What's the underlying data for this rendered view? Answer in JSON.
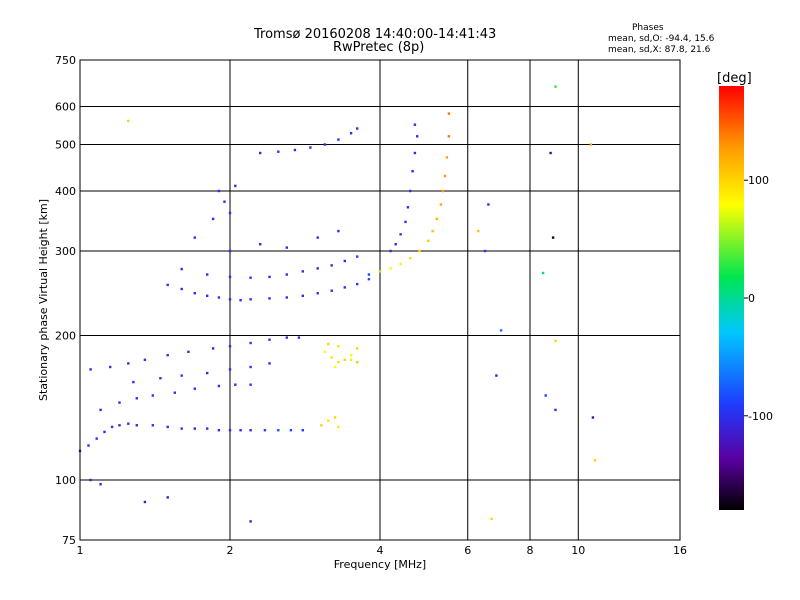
{
  "header": {
    "title": "Tromsø 20160208 14:40:00-14:41:43",
    "subtitle": "RwPretec (8p)"
  },
  "phase_stats": {
    "heading": "Phases",
    "line_o": "mean, sd,O: -94.4, 15.6",
    "line_x": "mean, sd,X:  87.8, 21.6"
  },
  "colorbar": {
    "label": "[deg]",
    "range": [
      -180,
      180
    ],
    "ticks": [
      100,
      0,
      -100
    ],
    "tick_labels": [
      "100",
      "0",
      "-100"
    ]
  },
  "chart_data": {
    "type": "scatter",
    "xlabel": "Frequency [MHz]",
    "ylabel": "Stationary phase Virtual Height [km]",
    "x_scale": "log",
    "y_scale": "log",
    "xlim": [
      1,
      16
    ],
    "ylim": [
      75,
      750
    ],
    "x_ticks": [
      1,
      2,
      4,
      6,
      8,
      10,
      16
    ],
    "x_tick_labels": [
      "1",
      "2",
      "4",
      "6",
      "8",
      "10",
      "16"
    ],
    "y_ticks": [
      75,
      100,
      200,
      300,
      400,
      500,
      600,
      750
    ],
    "y_tick_labels": [
      "75",
      "100",
      "200",
      "300",
      "400",
      "500",
      "600",
      "750"
    ],
    "grid": true,
    "color_by": "phase_deg",
    "series": [
      {
        "points": [
          [
            1.0,
            115,
            -100
          ],
          [
            1.04,
            118,
            -102
          ],
          [
            1.08,
            122,
            -98
          ],
          [
            1.12,
            126,
            -100
          ],
          [
            1.16,
            129,
            -96
          ],
          [
            1.2,
            130,
            -105
          ],
          [
            1.25,
            131,
            -99
          ],
          [
            1.3,
            130,
            -100
          ],
          [
            1.4,
            130,
            -95
          ],
          [
            1.5,
            129,
            -100
          ],
          [
            1.6,
            128,
            -98
          ],
          [
            1.7,
            128,
            -103
          ],
          [
            1.8,
            128,
            -100
          ],
          [
            1.9,
            127,
            -97
          ],
          [
            2.0,
            127,
            -100
          ],
          [
            2.1,
            127,
            -99
          ],
          [
            2.2,
            127,
            -102
          ],
          [
            2.35,
            127,
            -88
          ],
          [
            2.5,
            127,
            -80
          ],
          [
            2.65,
            127,
            -85
          ],
          [
            2.8,
            127,
            -92
          ],
          [
            1.1,
            140,
            -100
          ],
          [
            1.2,
            145,
            -100
          ],
          [
            1.3,
            148,
            -95
          ],
          [
            1.4,
            150,
            -100
          ],
          [
            1.55,
            152,
            -97
          ],
          [
            1.7,
            155,
            -100
          ],
          [
            1.9,
            157,
            -99
          ],
          [
            2.05,
            158,
            -100
          ],
          [
            2.2,
            158,
            -90
          ],
          [
            1.05,
            170,
            -100
          ],
          [
            1.15,
            172,
            -98
          ],
          [
            1.25,
            175,
            -100
          ],
          [
            1.35,
            178,
            -100
          ],
          [
            1.5,
            182,
            -96
          ],
          [
            1.65,
            185,
            -100
          ],
          [
            1.85,
            188,
            -100
          ],
          [
            2.0,
            190,
            -98
          ],
          [
            2.2,
            193,
            -95
          ],
          [
            2.4,
            196,
            -100
          ],
          [
            2.6,
            198,
            -99
          ],
          [
            2.75,
            198,
            -100
          ],
          [
            1.28,
            160,
            -100
          ],
          [
            1.45,
            163,
            -100
          ],
          [
            1.6,
            165,
            -94
          ],
          [
            1.8,
            167,
            -100
          ],
          [
            2.0,
            170,
            -100
          ],
          [
            2.2,
            172,
            -97
          ],
          [
            2.4,
            175,
            -100
          ],
          [
            3.1,
            185,
            80
          ],
          [
            3.2,
            180,
            90
          ],
          [
            3.3,
            176,
            95
          ],
          [
            3.4,
            178,
            100
          ],
          [
            3.5,
            182,
            85
          ],
          [
            3.6,
            188,
            100
          ],
          [
            3.15,
            192,
            100
          ],
          [
            3.3,
            190,
            92
          ],
          [
            3.5,
            178,
            70
          ],
          [
            3.25,
            172,
            80
          ],
          [
            3.6,
            176,
            105
          ],
          [
            3.05,
            130,
            100
          ],
          [
            3.15,
            133,
            95
          ],
          [
            3.25,
            135,
            100
          ],
          [
            3.3,
            129,
            90
          ],
          [
            1.5,
            255,
            -100
          ],
          [
            1.6,
            250,
            -100
          ],
          [
            1.7,
            245,
            -98
          ],
          [
            1.8,
            242,
            -100
          ],
          [
            1.9,
            240,
            -96
          ],
          [
            2.0,
            238,
            -100
          ],
          [
            2.1,
            237,
            -99
          ],
          [
            2.2,
            238,
            -100
          ],
          [
            2.4,
            239,
            -100
          ],
          [
            2.6,
            240,
            -95
          ],
          [
            2.8,
            242,
            -100
          ],
          [
            3.0,
            245,
            -100
          ],
          [
            3.2,
            248,
            -97
          ],
          [
            3.4,
            252,
            -100
          ],
          [
            3.6,
            256,
            -92
          ],
          [
            3.8,
            262,
            -85
          ],
          [
            1.6,
            275,
            -100
          ],
          [
            1.8,
            268,
            -100
          ],
          [
            2.0,
            265,
            -98
          ],
          [
            2.2,
            264,
            -100
          ],
          [
            2.4,
            265,
            -100
          ],
          [
            2.6,
            268,
            -95
          ],
          [
            2.8,
            272,
            -100
          ],
          [
            3.0,
            276,
            -100
          ],
          [
            3.2,
            280,
            -97
          ],
          [
            3.4,
            286,
            -100
          ],
          [
            3.6,
            292,
            -90
          ],
          [
            3.8,
            268,
            -85
          ],
          [
            4.0,
            272,
            60
          ],
          [
            4.2,
            276,
            75
          ],
          [
            4.4,
            282,
            85
          ],
          [
            4.6,
            290,
            95
          ],
          [
            4.8,
            300,
            100
          ],
          [
            5.0,
            315,
            105
          ],
          [
            5.1,
            330,
            110
          ],
          [
            5.2,
            350,
            115
          ],
          [
            5.3,
            375,
            120
          ],
          [
            5.35,
            400,
            125
          ],
          [
            5.4,
            430,
            130
          ],
          [
            5.45,
            470,
            125
          ],
          [
            5.5,
            520,
            140
          ],
          [
            5.5,
            580,
            140
          ],
          [
            4.2,
            300,
            -100
          ],
          [
            4.3,
            310,
            -100
          ],
          [
            4.4,
            325,
            -98
          ],
          [
            4.5,
            345,
            -100
          ],
          [
            4.55,
            370,
            -100
          ],
          [
            4.6,
            400,
            -96
          ],
          [
            4.65,
            440,
            -100
          ],
          [
            4.7,
            480,
            -100
          ],
          [
            4.75,
            520,
            -98
          ],
          [
            4.7,
            550,
            -100
          ],
          [
            1.9,
            400,
            -100
          ],
          [
            1.95,
            380,
            -100
          ],
          [
            2.0,
            360,
            -98
          ],
          [
            1.85,
            350,
            -100
          ],
          [
            2.05,
            410,
            -100
          ],
          [
            2.3,
            480,
            -100
          ],
          [
            2.5,
            483,
            -98
          ],
          [
            2.7,
            487,
            -100
          ],
          [
            2.9,
            493,
            -100
          ],
          [
            3.1,
            500,
            -100
          ],
          [
            3.3,
            512,
            -97
          ],
          [
            3.5,
            528,
            -100
          ],
          [
            3.6,
            540,
            -100
          ],
          [
            1.7,
            320,
            -100
          ],
          [
            2.0,
            300,
            -100
          ],
          [
            2.3,
            310,
            -98
          ],
          [
            2.6,
            305,
            -100
          ],
          [
            3.0,
            320,
            -100
          ],
          [
            3.3,
            330,
            -100
          ],
          [
            1.25,
            560,
            100
          ],
          [
            1.35,
            90,
            -110
          ],
          [
            1.05,
            100,
            -110
          ],
          [
            1.1,
            98,
            -105
          ],
          [
            1.5,
            92,
            -110
          ],
          [
            2.2,
            82,
            -110
          ],
          [
            6.3,
            330,
            110
          ],
          [
            6.5,
            300,
            -95
          ],
          [
            6.6,
            375,
            -100
          ],
          [
            6.7,
            83,
            100
          ],
          [
            6.85,
            165,
            -110
          ],
          [
            7.0,
            205,
            -70
          ],
          [
            8.5,
            270,
            10
          ],
          [
            8.6,
            150,
            -90
          ],
          [
            8.8,
            480,
            -140
          ],
          [
            8.9,
            320,
            -170
          ],
          [
            9.0,
            660,
            30
          ],
          [
            9.0,
            195,
            100
          ],
          [
            9.0,
            140,
            -100
          ],
          [
            10.6,
            500,
            120
          ],
          [
            10.7,
            135,
            -130
          ],
          [
            10.8,
            110,
            100
          ]
        ]
      }
    ]
  }
}
